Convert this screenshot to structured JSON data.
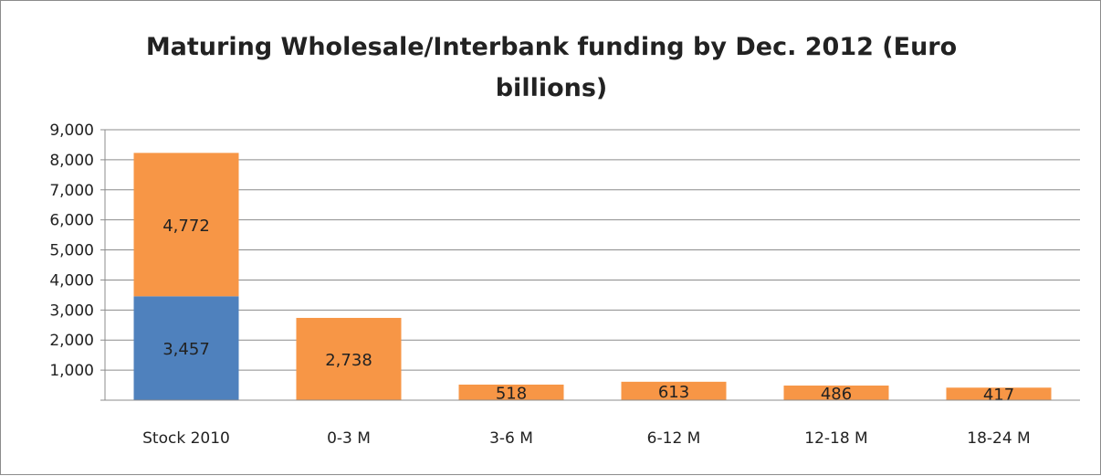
{
  "chart_data": {
    "type": "bar",
    "title": "Maturing Wholesale/Interbank funding by Dec. 2012 (Euro billions)",
    "xlabel": "",
    "ylabel": "",
    "categories": [
      "Stock 2010",
      "0-3 M",
      "3-6 M",
      "6-12 M",
      "12-18 M",
      "18-24 M"
    ],
    "stacked": true,
    "series": [
      {
        "color": "#4f81bd",
        "values": [
          3457,
          null,
          null,
          null,
          null,
          null
        ],
        "labels": [
          "3,457",
          "",
          "",
          "",
          "",
          ""
        ]
      },
      {
        "color": "#f79646",
        "values": [
          4772,
          2738,
          518,
          613,
          486,
          417
        ],
        "labels": [
          "4,772",
          "2,738",
          "518",
          "613",
          "486",
          "417"
        ]
      }
    ],
    "ylim": [
      0,
      9000
    ],
    "yticks": [
      1000,
      2000,
      3000,
      4000,
      5000,
      6000,
      7000,
      8000,
      9000
    ],
    "ytick_labels": [
      "1,000",
      "2,000",
      "3,000",
      "4,000",
      "5,000",
      "6,000",
      "7,000",
      "8,000",
      "9,000"
    ],
    "grid": true,
    "legend": "none"
  }
}
